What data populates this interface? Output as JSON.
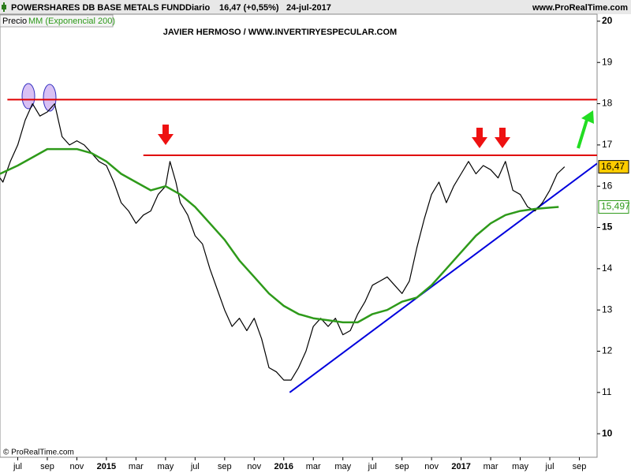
{
  "chart_data": {
    "type": "line",
    "title": "POWERSHARES DB BASE METALS FUND",
    "period": "Diario",
    "last_change": "16,47 (+0,55%)",
    "date": "24-jul-2017",
    "source": "www.ProRealTime.com",
    "subtitle": "JAVIER HERMOSO / WWW.INVERTIRYESPECULAR.COM",
    "credit": "© ProRealTime.com",
    "xlim": [
      -1.2,
      39.2
    ],
    "xticks": [
      {
        "value": 0,
        "label": "jul"
      },
      {
        "value": 2,
        "label": "sep"
      },
      {
        "value": 4,
        "label": "nov"
      },
      {
        "value": 6,
        "label": "2015"
      },
      {
        "value": 8,
        "label": "mar"
      },
      {
        "value": 10,
        "label": "may"
      },
      {
        "value": 12,
        "label": "jul"
      },
      {
        "value": 14,
        "label": "sep"
      },
      {
        "value": 16,
        "label": "nov"
      },
      {
        "value": 18,
        "label": "2016"
      },
      {
        "value": 20,
        "label": "mar"
      },
      {
        "value": 22,
        "label": "may"
      },
      {
        "value": 24,
        "label": "jul"
      },
      {
        "value": 26,
        "label": "sep"
      },
      {
        "value": 28,
        "label": "nov"
      },
      {
        "value": 30,
        "label": "2017"
      },
      {
        "value": 32,
        "label": "mar"
      },
      {
        "value": 34,
        "label": "may"
      },
      {
        "value": 36,
        "label": "jul"
      },
      {
        "value": 38,
        "label": "sep"
      }
    ],
    "ylim": [
      9.43,
      20.17
    ],
    "yticks": [
      10,
      11,
      12,
      13,
      14,
      15,
      16,
      17,
      18,
      19,
      20
    ],
    "series": [
      {
        "name": "Precio",
        "color": "#000000",
        "x": [
          -1.2,
          -1,
          -0.5,
          0,
          0.5,
          1,
          1.5,
          2,
          2.5,
          3,
          3.5,
          4,
          4.5,
          5,
          5.5,
          6,
          6.5,
          7,
          7.5,
          8,
          8.5,
          9,
          9.5,
          10,
          10.3,
          10.7,
          11,
          11.5,
          12,
          12.5,
          13,
          13.5,
          14,
          14.5,
          15,
          15.5,
          16,
          16.5,
          17,
          17.5,
          18,
          18.5,
          19,
          19.5,
          20,
          20.5,
          21,
          21.5,
          22,
          22.5,
          23,
          23.5,
          24,
          24.5,
          25,
          25.5,
          26,
          26.5,
          27,
          27.5,
          28,
          28.5,
          29,
          29.5,
          30,
          30.5,
          31,
          31.5,
          32,
          32.5,
          33,
          33.5,
          34,
          34.5,
          35,
          35.5,
          36,
          36.5,
          37
        ],
        "values": [
          16.2,
          16.1,
          16.6,
          17.0,
          17.6,
          18.0,
          17.7,
          17.8,
          18.0,
          17.2,
          17.0,
          17.1,
          17.0,
          16.8,
          16.6,
          16.5,
          16.1,
          15.6,
          15.4,
          15.1,
          15.3,
          15.4,
          15.8,
          16.0,
          16.6,
          16.1,
          15.6,
          15.3,
          14.8,
          14.6,
          14.0,
          13.5,
          13.0,
          12.6,
          12.8,
          12.5,
          12.8,
          12.3,
          11.6,
          11.5,
          11.3,
          11.3,
          11.6,
          12.0,
          12.6,
          12.8,
          12.6,
          12.8,
          12.4,
          12.5,
          12.9,
          13.2,
          13.6,
          13.7,
          13.8,
          13.6,
          13.4,
          13.7,
          14.5,
          15.2,
          15.8,
          16.1,
          15.6,
          16.0,
          16.3,
          16.6,
          16.3,
          16.5,
          16.4,
          16.2,
          16.6,
          15.9,
          15.8,
          15.5,
          15.4,
          15.6,
          15.9,
          16.3,
          16.47
        ]
      },
      {
        "name": "MM (Exponencial 200)",
        "color": "#2e9a1a",
        "x": [
          -1.2,
          0,
          1,
          2,
          3,
          4,
          5,
          6,
          7,
          8,
          9,
          10,
          11,
          12,
          13,
          14,
          15,
          16,
          17,
          18,
          19,
          20,
          21,
          22,
          23,
          24,
          25,
          26,
          27,
          28,
          29,
          30,
          31,
          32,
          33,
          34,
          35,
          36,
          36.6
        ],
        "values": [
          16.3,
          16.5,
          16.7,
          16.9,
          16.9,
          16.9,
          16.8,
          16.6,
          16.3,
          16.1,
          15.9,
          16.0,
          15.8,
          15.5,
          15.1,
          14.7,
          14.2,
          13.8,
          13.4,
          13.1,
          12.9,
          12.8,
          12.75,
          12.7,
          12.7,
          12.9,
          13.0,
          13.2,
          13.3,
          13.6,
          14.0,
          14.4,
          14.8,
          15.1,
          15.3,
          15.4,
          15.45,
          15.48,
          15.497
        ]
      }
    ],
    "last_labels": [
      {
        "value": 16.47,
        "label": "16,47",
        "color": "#000000",
        "background": "#ffcc00"
      },
      {
        "value": 15.497,
        "label": "15,497",
        "color": "#2e9a1a",
        "background": "#ffffff"
      }
    ],
    "hlines": [
      {
        "value": 18.1,
        "xstart": -0.7,
        "color": "#e00000"
      },
      {
        "value": 16.75,
        "xstart": 8.5,
        "color": "#e00000"
      }
    ],
    "trendline": {
      "x": [
        18.4,
        39.2
      ],
      "values": [
        11.0,
        16.55
      ],
      "color": "#0000dd"
    }
  }
}
